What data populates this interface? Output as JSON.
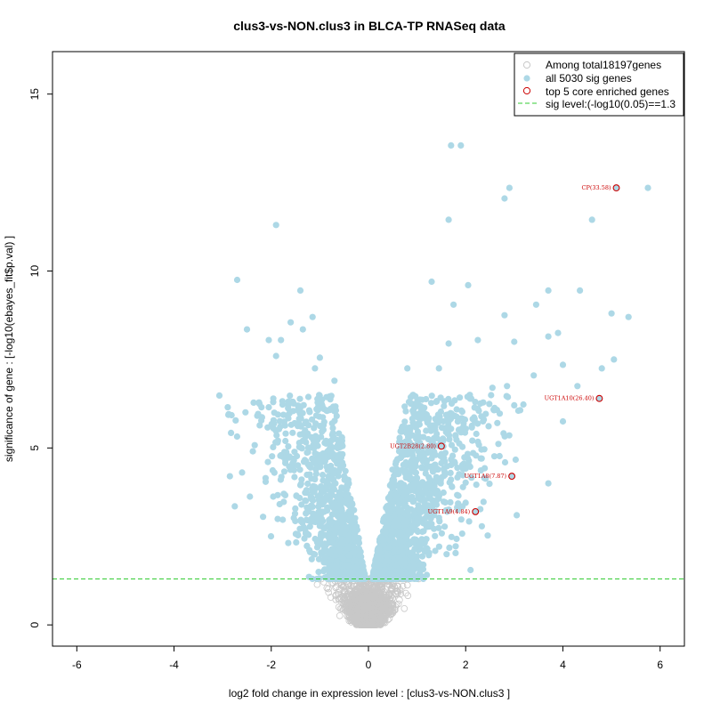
{
  "chart_data": {
    "type": "scatter",
    "title": "clus3-vs-NON.clus3 in BLCA-TP RNASeq data",
    "xlabel": "log2 fold change in expression level : [clus3-vs-NON.clus3 ]",
    "ylabel": "significance of gene : [-log10(ebayes_fit$p.val) ]",
    "xlim": [
      -6.5,
      6.5
    ],
    "ylim": [
      -0.6,
      16.2
    ],
    "xticks": [
      -6,
      -4,
      -2,
      0,
      2,
      4,
      6
    ],
    "yticks": [
      0,
      5,
      10,
      15
    ],
    "threshold": 1.3,
    "colors": {
      "nonsig": "#c8c8c8",
      "sig": "#add8e6",
      "core": "#cc0000",
      "threshold_line": "#33cc33"
    },
    "legend": {
      "position": "top-right",
      "items": [
        {
          "label": "Among total18197genes",
          "marker": "open-circle-gray"
        },
        {
          "label": "all 5030 sig genes",
          "marker": "filled-circle-lightblue"
        },
        {
          "label": "top 5 core enriched genes",
          "marker": "open-circle-red"
        },
        {
          "label": "sig level:(-log10(0.05)==1.3",
          "marker": "dashed-line-green"
        }
      ]
    },
    "highlighted_sig_points": [
      {
        "x": 1.7,
        "y": 13.55
      },
      {
        "x": 1.9,
        "y": 13.55
      },
      {
        "x": 2.9,
        "y": 12.35
      },
      {
        "x": 2.8,
        "y": 12.05
      },
      {
        "x": 5.75,
        "y": 12.35
      },
      {
        "x": 4.6,
        "y": 11.45
      },
      {
        "x": 1.65,
        "y": 11.45
      },
      {
        "x": -1.9,
        "y": 11.3
      },
      {
        "x": -2.7,
        "y": 9.75
      },
      {
        "x": -1.4,
        "y": 9.45
      },
      {
        "x": 1.3,
        "y": 9.7
      },
      {
        "x": 2.05,
        "y": 9.6
      },
      {
        "x": 1.75,
        "y": 9.05
      },
      {
        "x": 3.7,
        "y": 9.45
      },
      {
        "x": 4.35,
        "y": 9.45
      },
      {
        "x": 3.45,
        "y": 9.05
      },
      {
        "x": 5.0,
        "y": 8.8
      },
      {
        "x": 5.35,
        "y": 8.7
      },
      {
        "x": 2.8,
        "y": 8.75
      },
      {
        "x": 3.9,
        "y": 8.25
      },
      {
        "x": 3.7,
        "y": 8.15
      },
      {
        "x": -2.5,
        "y": 8.35
      },
      {
        "x": -1.6,
        "y": 8.55
      },
      {
        "x": -1.15,
        "y": 8.7
      },
      {
        "x": -2.05,
        "y": 8.05
      },
      {
        "x": -1.8,
        "y": 8.05
      },
      {
        "x": -1.35,
        "y": 8.35
      },
      {
        "x": -1.9,
        "y": 7.6
      },
      {
        "x": -1.0,
        "y": 7.55
      },
      {
        "x": 1.45,
        "y": 7.25
      },
      {
        "x": 1.65,
        "y": 7.95
      },
      {
        "x": 2.25,
        "y": 8.05
      },
      {
        "x": 3.0,
        "y": 8.0
      },
      {
        "x": 4.0,
        "y": 7.35
      },
      {
        "x": 4.8,
        "y": 7.25
      },
      {
        "x": 5.05,
        "y": 7.5
      },
      {
        "x": 3.4,
        "y": 7.05
      },
      {
        "x": 0.8,
        "y": 7.25
      },
      {
        "x": 2.85,
        "y": 6.75
      },
      {
        "x": 4.3,
        "y": 6.75
      },
      {
        "x": 2.55,
        "y": 6.7
      },
      {
        "x": -1.1,
        "y": 7.25
      },
      {
        "x": -0.7,
        "y": 6.9
      },
      {
        "x": -2.2,
        "y": 6.15
      },
      {
        "x": -2.05,
        "y": 6.15
      },
      {
        "x": 4.0,
        "y": 5.75
      },
      {
        "x": -2.85,
        "y": 4.2
      },
      {
        "x": 3.7,
        "y": 4.0
      },
      {
        "x": 3.05,
        "y": 3.1
      },
      {
        "x": 2.1,
        "y": 1.55
      },
      {
        "x": -2.75,
        "y": 3.35
      }
    ],
    "core_genes": [
      {
        "label": "CP(33.58)",
        "x": 5.1,
        "y": 12.35
      },
      {
        "label": "UGT1A10(26.40)",
        "x": 4.75,
        "y": 6.4
      },
      {
        "label": "UGT2B28(2.80)",
        "x": 1.5,
        "y": 5.05
      },
      {
        "label": "UGT1A8(7.87)",
        "x": 2.95,
        "y": 4.2
      },
      {
        "label": "UGT1A9(4.84)",
        "x": 2.2,
        "y": 3.2
      }
    ]
  }
}
